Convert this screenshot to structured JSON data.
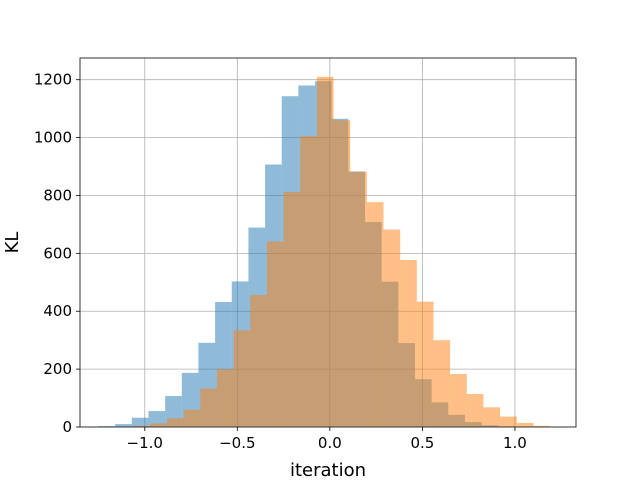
{
  "chart_data": {
    "type": "histogram",
    "title": "",
    "xlabel": "iteration",
    "ylabel": "KL",
    "xlim": [
      -1.35,
      1.33
    ],
    "ylim": [
      0,
      1275
    ],
    "grid": true,
    "overlay_alpha": 0.5,
    "bin_width": 0.09,
    "xticks": [
      {
        "value": -1.0,
        "label": "−1.0"
      },
      {
        "value": -0.5,
        "label": "−0.5"
      },
      {
        "value": 0.0,
        "label": "0.0"
      },
      {
        "value": 0.5,
        "label": "0.5"
      },
      {
        "value": 1.0,
        "label": "1.0"
      }
    ],
    "yticks": [
      {
        "value": 0,
        "label": "0"
      },
      {
        "value": 200,
        "label": "200"
      },
      {
        "value": 400,
        "label": "400"
      },
      {
        "value": 600,
        "label": "600"
      },
      {
        "value": 800,
        "label": "800"
      },
      {
        "value": 1000,
        "label": "1000"
      },
      {
        "value": 1200,
        "label": "1200"
      }
    ],
    "series": [
      {
        "color": "#1f77b4",
        "bin_start": -1.25,
        "counts": [
          3,
          10,
          32,
          55,
          107,
          187,
          291,
          432,
          503,
          689,
          907,
          1143,
          1180,
          1195,
          1065,
          883,
          708,
          502,
          290,
          165,
          85,
          42,
          17,
          6,
          2,
          0
        ]
      },
      {
        "color": "#ff7f0e",
        "bin_start": -1.15,
        "counts": [
          1,
          4,
          12,
          30,
          60,
          133,
          200,
          334,
          456,
          641,
          812,
          1005,
          1210,
          1060,
          882,
          777,
          682,
          577,
          433,
          300,
          183,
          114,
          68,
          36,
          14,
          4
        ]
      }
    ]
  }
}
